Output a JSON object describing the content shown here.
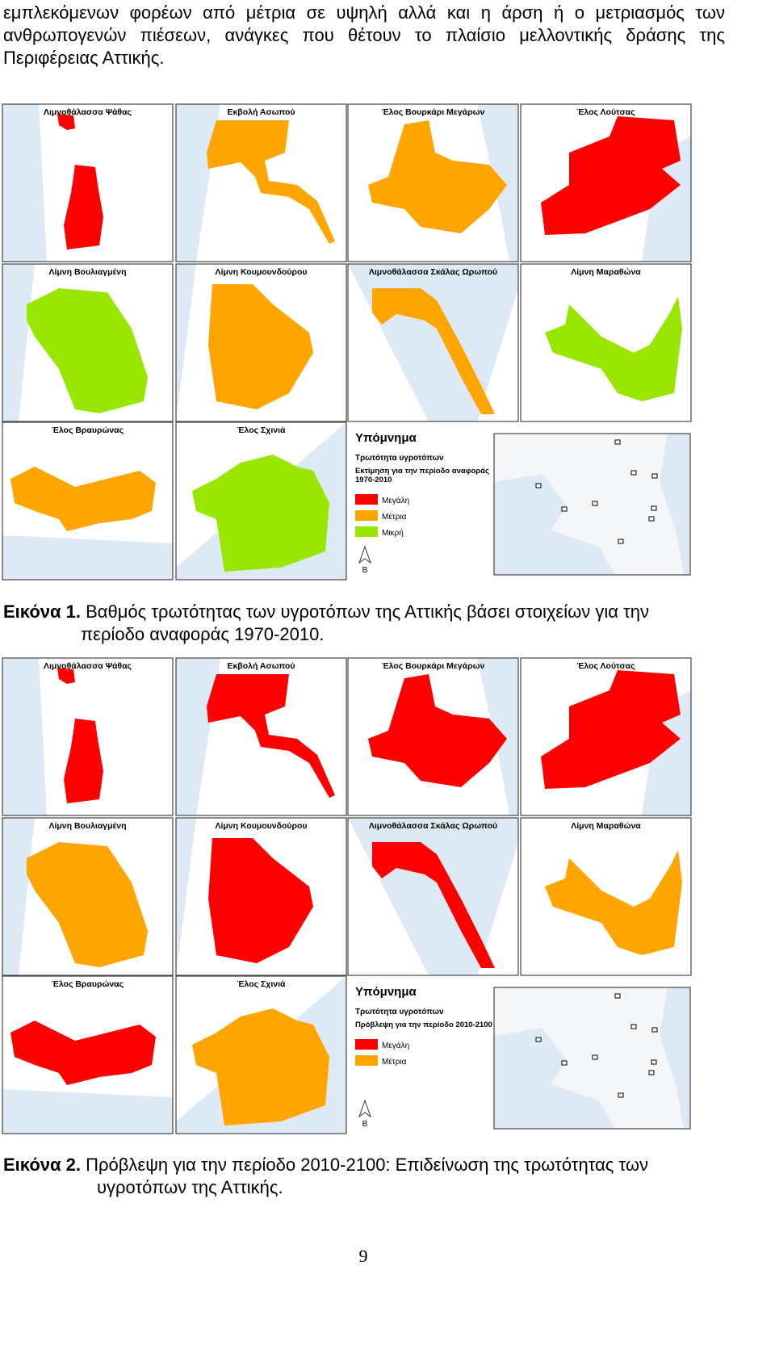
{
  "paragraph_lines": [
    "εμπλεκόμενων φορέων από μέτρια σε υψηλή αλλά και η άρση ή ο μετριασμός των",
    "ανθρωπογενών πιέσεων, ανάγκες που θέτουν το πλαίσιο μελλοντικής δράσης της",
    "Περιφέρειας Αττικής."
  ],
  "figures": [
    {
      "panels": [
        {
          "label": "Λιμνοθάλασσα Ψάθας",
          "fill": "#ff0000"
        },
        {
          "label": "Εκβολή Ασωπού",
          "fill": "#ffa500"
        },
        {
          "label": "Έλος Βουρκάρι Μεγάρων",
          "fill": "#ffa500"
        },
        {
          "label": "Έλος Λούτσας",
          "fill": "#ff0000"
        },
        {
          "label": "Λίμνη Βουλιαγμένη",
          "fill": "#99e600"
        },
        {
          "label": "Λίμνη Κουμουνδούρου",
          "fill": "#ffa500"
        },
        {
          "label": "Λιμνοθάλασσα Σκάλας Ωρωπού",
          "fill": "#ffa500"
        },
        {
          "label": "Λίμνη Μαραθώνα",
          "fill": "#99e600"
        },
        {
          "label": "Έλος Βραυρώνας",
          "fill": "#ffa500"
        },
        {
          "label": "Έλος Σχινιά",
          "fill": "#99e600"
        }
      ],
      "legend": {
        "title": "Υπόμνημα",
        "subtitle": "Τρωτότητα υγροτόπων",
        "period_lines": [
          "Εκτίμηση για την περίοδο αναφοράς",
          "1970-2010"
        ],
        "items": [
          {
            "label": "Μεγάλη",
            "color": "#ff0000"
          },
          {
            "label": "Μέτρια",
            "color": "#ffa500"
          },
          {
            "label": "Μικρή",
            "color": "#99e600"
          }
        ]
      },
      "north": "Β",
      "caption": {
        "label": "Εικόνα 1.",
        "text_lines": [
          "Βαθμός τρωτότητας των υγροτόπων της Αττικής βάσει στοιχείων για την",
          "περίοδο αναφοράς 1970-2010."
        ]
      }
    },
    {
      "panels": [
        {
          "label": "Λιμνοθάλασσα Ψάθας",
          "fill": "#ff0000"
        },
        {
          "label": "Εκβολή Ασωπού",
          "fill": "#ff0000"
        },
        {
          "label": "Έλος Βουρκάρι Μεγάρων",
          "fill": "#ff0000"
        },
        {
          "label": "Έλος Λούτσας",
          "fill": "#ff0000"
        },
        {
          "label": "Λίμνη Βουλιαγμένη",
          "fill": "#ffa500"
        },
        {
          "label": "Λίμνη Κουμουνδούρου",
          "fill": "#ff0000"
        },
        {
          "label": "Λιμνοθάλασσα Σκάλας Ωρωπού",
          "fill": "#ff0000"
        },
        {
          "label": "Λίμνη Μαραθώνα",
          "fill": "#ffa500"
        },
        {
          "label": "Έλος Βραυρώνας",
          "fill": "#ff0000"
        },
        {
          "label": "Έλος Σχινιά",
          "fill": "#ffa500"
        }
      ],
      "legend": {
        "title": "Υπόμνημα",
        "subtitle": "Τρωτότητα υγροτόπων",
        "period_lines": [
          "Πρόβλεψη για την περίοδο 2010-2100"
        ],
        "items": [
          {
            "label": "Μεγάλη",
            "color": "#ff0000"
          },
          {
            "label": "Μέτρια",
            "color": "#ffa500"
          }
        ]
      },
      "north": "Β",
      "caption": {
        "label": "Εικόνα 2.",
        "text_lines": [
          "Πρόβλεψη για την περίοδο 2010-2100: Επιδείνωση της τρωτότητας των",
          "υγροτόπων της Αττικής."
        ]
      }
    }
  ],
  "page_number": "9"
}
